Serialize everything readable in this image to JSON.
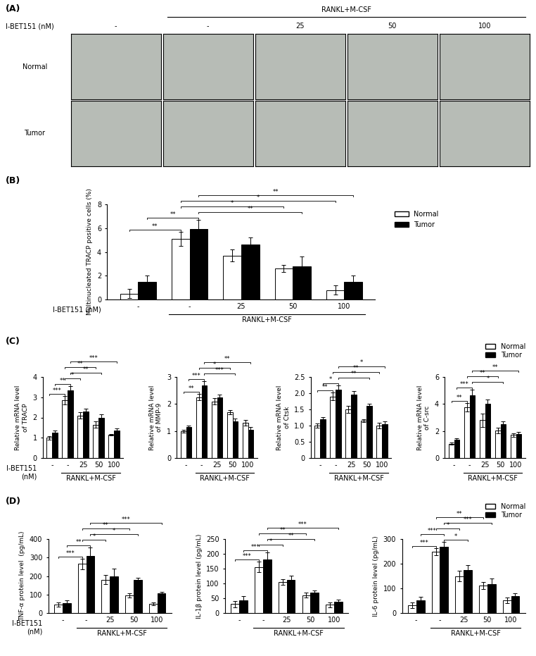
{
  "image_panel": {
    "label": "(A)",
    "row_header": "I-BET151 (nM)",
    "group_label": "RANKL+M-CSF",
    "group_span": [
      1,
      4
    ],
    "columns": [
      "-",
      "-",
      "25",
      "50",
      "100"
    ],
    "rows": [
      "Normal",
      "Tumor"
    ]
  },
  "chart_data": [
    {
      "type": "bar",
      "label": "(B)",
      "categories": [
        "-",
        "-",
        "25",
        "50",
        "100"
      ],
      "xlabel": "I-BET151 (nM)",
      "group_label": "RANKL+M-CSF",
      "group_span": [
        1,
        4
      ],
      "ylabel": "Multinucleated TRACP positive cells (%)",
      "ylim": [
        0,
        8
      ],
      "yticks": [
        0,
        2,
        4,
        6,
        8
      ],
      "legend": "right",
      "series": [
        {
          "name": "Normal",
          "color": "#ffffff",
          "values": [
            0.5,
            5.1,
            3.7,
            2.6,
            0.8
          ],
          "errors": [
            0.4,
            0.6,
            0.5,
            0.3,
            0.4
          ]
        },
        {
          "name": "Tumor",
          "color": "#000000",
          "values": [
            1.5,
            5.9,
            4.6,
            2.8,
            1.5
          ],
          "errors": [
            0.5,
            0.8,
            0.6,
            0.8,
            0.5
          ]
        }
      ],
      "brackets": [
        {
          "from": [
            0,
            0
          ],
          "to": [
            1,
            0
          ],
          "text": "**"
        },
        {
          "from": [
            0,
            1
          ],
          "to": [
            1,
            1
          ],
          "text": "**"
        },
        {
          "from": [
            1,
            0
          ],
          "to": [
            3,
            0
          ],
          "text": "*"
        },
        {
          "from": [
            1,
            1
          ],
          "to": [
            3,
            1
          ],
          "text": "**"
        },
        {
          "from": [
            1,
            0
          ],
          "to": [
            4,
            0
          ],
          "text": "*"
        },
        {
          "from": [
            1,
            1
          ],
          "to": [
            4,
            1
          ],
          "text": "**"
        }
      ]
    },
    {
      "type": "bar",
      "label": "(C)",
      "categories": [
        "-",
        "-",
        "25",
        "50",
        "100"
      ],
      "xlabel": "I-BET151\n(nM)",
      "group_label": "RANKL+M-CSF",
      "group_span": [
        1,
        4
      ],
      "ylabel": "Relative mRNA level\nof TRACP",
      "ylim": [
        0,
        4
      ],
      "yticks": [
        0,
        1,
        2,
        3,
        4
      ],
      "series": [
        {
          "name": "Normal",
          "color": "#ffffff",
          "values": [
            1.0,
            2.85,
            2.1,
            1.65,
            1.15
          ],
          "errors": [
            0.08,
            0.2,
            0.15,
            0.15,
            0.05
          ]
        },
        {
          "name": "Tumor",
          "color": "#000000",
          "values": [
            1.25,
            3.35,
            2.3,
            2.0,
            1.35
          ],
          "errors": [
            0.1,
            0.2,
            0.15,
            0.15,
            0.12
          ]
        }
      ],
      "brackets": [
        {
          "from": [
            0,
            0
          ],
          "to": [
            1,
            0
          ],
          "text": "***"
        },
        {
          "from": [
            0,
            1
          ],
          "to": [
            1,
            1
          ],
          "text": "**"
        },
        {
          "from": [
            1,
            0
          ],
          "to": [
            2,
            0
          ],
          "text": "*"
        },
        {
          "from": [
            1,
            1
          ],
          "to": [
            3,
            1
          ],
          "text": "**"
        },
        {
          "from": [
            1,
            0
          ],
          "to": [
            3,
            0
          ],
          "text": "**"
        },
        {
          "from": [
            1,
            1
          ],
          "to": [
            4,
            1
          ],
          "text": "***"
        }
      ]
    },
    {
      "type": "bar",
      "categories": [
        "-",
        "-",
        "25",
        "50",
        "100"
      ],
      "group_label": "RANKL+M-CSF",
      "group_span": [
        1,
        4
      ],
      "ylabel": "Relative mRNA level\nof MMP-9",
      "ylim": [
        0,
        3
      ],
      "yticks": [
        0,
        1,
        2,
        3
      ],
      "series": [
        {
          "name": "Normal",
          "color": "#ffffff",
          "values": [
            1.0,
            2.25,
            2.1,
            1.7,
            1.3
          ],
          "errors": [
            0.05,
            0.12,
            0.12,
            0.08,
            0.1
          ]
        },
        {
          "name": "Tumor",
          "color": "#000000",
          "values": [
            1.15,
            2.7,
            2.25,
            1.35,
            1.05
          ],
          "errors": [
            0.06,
            0.15,
            0.1,
            0.12,
            0.1
          ]
        }
      ],
      "brackets": [
        {
          "from": [
            0,
            0
          ],
          "to": [
            1,
            0
          ],
          "text": "**"
        },
        {
          "from": [
            0,
            1
          ],
          "to": [
            1,
            1
          ],
          "text": "***"
        },
        {
          "from": [
            1,
            0
          ],
          "to": [
            3,
            0
          ],
          "text": "*"
        },
        {
          "from": [
            1,
            1
          ],
          "to": [
            3,
            1
          ],
          "text": "***"
        },
        {
          "from": [
            1,
            1
          ],
          "to": [
            4,
            1
          ],
          "text": "**"
        }
      ]
    },
    {
      "type": "bar",
      "categories": [
        "-",
        "-",
        "25",
        "50",
        "100"
      ],
      "group_label": "RANKL+M-CSF",
      "group_span": [
        1,
        4
      ],
      "ylabel": "Relative mRNA level\nof Ctsk",
      "ylim": [
        0,
        2.5
      ],
      "yticks": [
        0,
        0.5,
        1.0,
        1.5,
        2.0,
        2.5
      ],
      "series": [
        {
          "name": "Normal",
          "color": "#ffffff",
          "values": [
            1.0,
            1.9,
            1.5,
            1.15,
            1.0
          ],
          "errors": [
            0.06,
            0.12,
            0.1,
            0.05,
            0.08
          ]
        },
        {
          "name": "Tumor",
          "color": "#000000",
          "values": [
            1.2,
            2.1,
            1.95,
            1.6,
            1.05
          ],
          "errors": [
            0.07,
            0.15,
            0.12,
            0.08,
            0.08
          ]
        }
      ],
      "brackets": [
        {
          "from": [
            0,
            0
          ],
          "to": [
            1,
            0
          ],
          "text": "**"
        },
        {
          "from": [
            0,
            1
          ],
          "to": [
            1,
            1
          ],
          "text": "*"
        },
        {
          "from": [
            1,
            1
          ],
          "to": [
            3,
            1
          ],
          "text": "**"
        },
        {
          "from": [
            1,
            0
          ],
          "to": [
            4,
            0
          ],
          "text": "**"
        },
        {
          "from": [
            1,
            1
          ],
          "to": [
            4,
            1
          ],
          "text": "*"
        }
      ]
    },
    {
      "type": "bar",
      "categories": [
        "-",
        "-",
        "25",
        "50",
        "100"
      ],
      "group_label": "RANKL+M-CSF",
      "group_span": [
        1,
        4
      ],
      "ylabel": "Relative mRNA level\nof C-src",
      "ylim": [
        0,
        6
      ],
      "yticks": [
        0,
        2,
        4,
        6
      ],
      "legend": "upper right",
      "series": [
        {
          "name": "Normal",
          "color": "#ffffff",
          "values": [
            1.05,
            3.75,
            2.8,
            2.05,
            1.7
          ],
          "errors": [
            0.08,
            0.3,
            0.5,
            0.2,
            0.12
          ]
        },
        {
          "name": "Tumor",
          "color": "#000000",
          "values": [
            1.35,
            4.65,
            4.0,
            2.5,
            1.8
          ],
          "errors": [
            0.12,
            0.4,
            0.35,
            0.2,
            0.12
          ]
        }
      ],
      "brackets": [
        {
          "from": [
            0,
            0
          ],
          "to": [
            1,
            0
          ],
          "text": "**"
        },
        {
          "from": [
            0,
            1
          ],
          "to": [
            1,
            1
          ],
          "text": "***"
        },
        {
          "from": [
            1,
            0
          ],
          "to": [
            3,
            0
          ],
          "text": "**"
        },
        {
          "from": [
            1,
            1
          ],
          "to": [
            3,
            1
          ],
          "text": "*"
        },
        {
          "from": [
            1,
            1
          ],
          "to": [
            4,
            1
          ],
          "text": "**"
        }
      ]
    },
    {
      "type": "bar",
      "label": "(D)",
      "categories": [
        "-",
        "-",
        "25",
        "50",
        "100"
      ],
      "xlabel": "I-BET151\n(nM)",
      "group_label": "RANKL+M-CSF",
      "group_span": [
        1,
        4
      ],
      "ylabel": "TNF-α protein level  (pg/mL)",
      "ylim": [
        0,
        400
      ],
      "yticks": [
        0,
        100,
        200,
        300,
        400
      ],
      "series": [
        {
          "name": "Normal",
          "color": "#ffffff",
          "values": [
            45,
            265,
            180,
            95,
            50
          ],
          "errors": [
            12,
            30,
            25,
            10,
            8
          ]
        },
        {
          "name": "Tumor",
          "color": "#000000",
          "values": [
            55,
            310,
            200,
            180,
            105
          ],
          "errors": [
            15,
            45,
            40,
            10,
            10
          ]
        }
      ],
      "brackets": [
        {
          "from": [
            0,
            0
          ],
          "to": [
            1,
            0
          ],
          "text": "***"
        },
        {
          "from": [
            0,
            1
          ],
          "to": [
            1,
            1
          ],
          "text": "**"
        },
        {
          "from": [
            1,
            0
          ],
          "to": [
            2,
            0
          ],
          "text": "*"
        },
        {
          "from": [
            1,
            1
          ],
          "to": [
            3,
            1
          ],
          "text": "*"
        },
        {
          "from": [
            1,
            0
          ],
          "to": [
            3,
            0
          ],
          "text": "**"
        },
        {
          "from": [
            1,
            1
          ],
          "to": [
            4,
            1
          ],
          "text": "***"
        }
      ]
    },
    {
      "type": "bar",
      "categories": [
        "-",
        "-",
        "25",
        "50",
        "100"
      ],
      "group_label": "RANKL+M-CSF",
      "group_span": [
        1,
        4
      ],
      "ylabel": "IL-1β protein level (pg/mL)",
      "ylim": [
        0,
        250
      ],
      "yticks": [
        0,
        50,
        100,
        150,
        200,
        250
      ],
      "series": [
        {
          "name": "Normal",
          "color": "#ffffff",
          "values": [
            30,
            155,
            105,
            60,
            28
          ],
          "errors": [
            10,
            18,
            10,
            8,
            8
          ]
        },
        {
          "name": "Tumor",
          "color": "#000000",
          "values": [
            42,
            180,
            112,
            68,
            38
          ],
          "errors": [
            15,
            25,
            15,
            8,
            8
          ]
        }
      ],
      "brackets": [
        {
          "from": [
            0,
            0
          ],
          "to": [
            1,
            0
          ],
          "text": "***"
        },
        {
          "from": [
            0,
            1
          ],
          "to": [
            1,
            1
          ],
          "text": "***"
        },
        {
          "from": [
            1,
            0
          ],
          "to": [
            2,
            0
          ],
          "text": "*"
        },
        {
          "from": [
            1,
            1
          ],
          "to": [
            3,
            1
          ],
          "text": "**"
        },
        {
          "from": [
            1,
            0
          ],
          "to": [
            3,
            0
          ],
          "text": "**"
        },
        {
          "from": [
            1,
            1
          ],
          "to": [
            4,
            1
          ],
          "text": "***"
        }
      ]
    },
    {
      "type": "bar",
      "categories": [
        "-",
        "-",
        "25",
        "50",
        "100"
      ],
      "group_label": "RANKL+M-CSF",
      "group_span": [
        1,
        4
      ],
      "ylabel": "IL-6 protein level (pg/mL)",
      "ylim": [
        0,
        300
      ],
      "yticks": [
        0,
        100,
        200,
        300
      ],
      "legend": "upper right",
      "series": [
        {
          "name": "Normal",
          "color": "#ffffff",
          "values": [
            32,
            248,
            150,
            112,
            52
          ],
          "errors": [
            12,
            15,
            22,
            15,
            12
          ]
        },
        {
          "name": "Tumor",
          "color": "#000000",
          "values": [
            52,
            270,
            175,
            118,
            68
          ],
          "errors": [
            15,
            18,
            18,
            22,
            12
          ]
        }
      ],
      "brackets": [
        {
          "from": [
            0,
            0
          ],
          "to": [
            1,
            0
          ],
          "text": "***"
        },
        {
          "from": [
            0,
            1
          ],
          "to": [
            1,
            1
          ],
          "text": "***"
        },
        {
          "from": [
            1,
            0
          ],
          "to": [
            2,
            0
          ],
          "text": "*"
        },
        {
          "from": [
            1,
            1
          ],
          "to": [
            2,
            1
          ],
          "text": "*"
        },
        {
          "from": [
            1,
            0
          ],
          "to": [
            3,
            0
          ],
          "text": "**"
        },
        {
          "from": [
            1,
            1
          ],
          "to": [
            3,
            1
          ],
          "text": "***"
        }
      ]
    }
  ]
}
